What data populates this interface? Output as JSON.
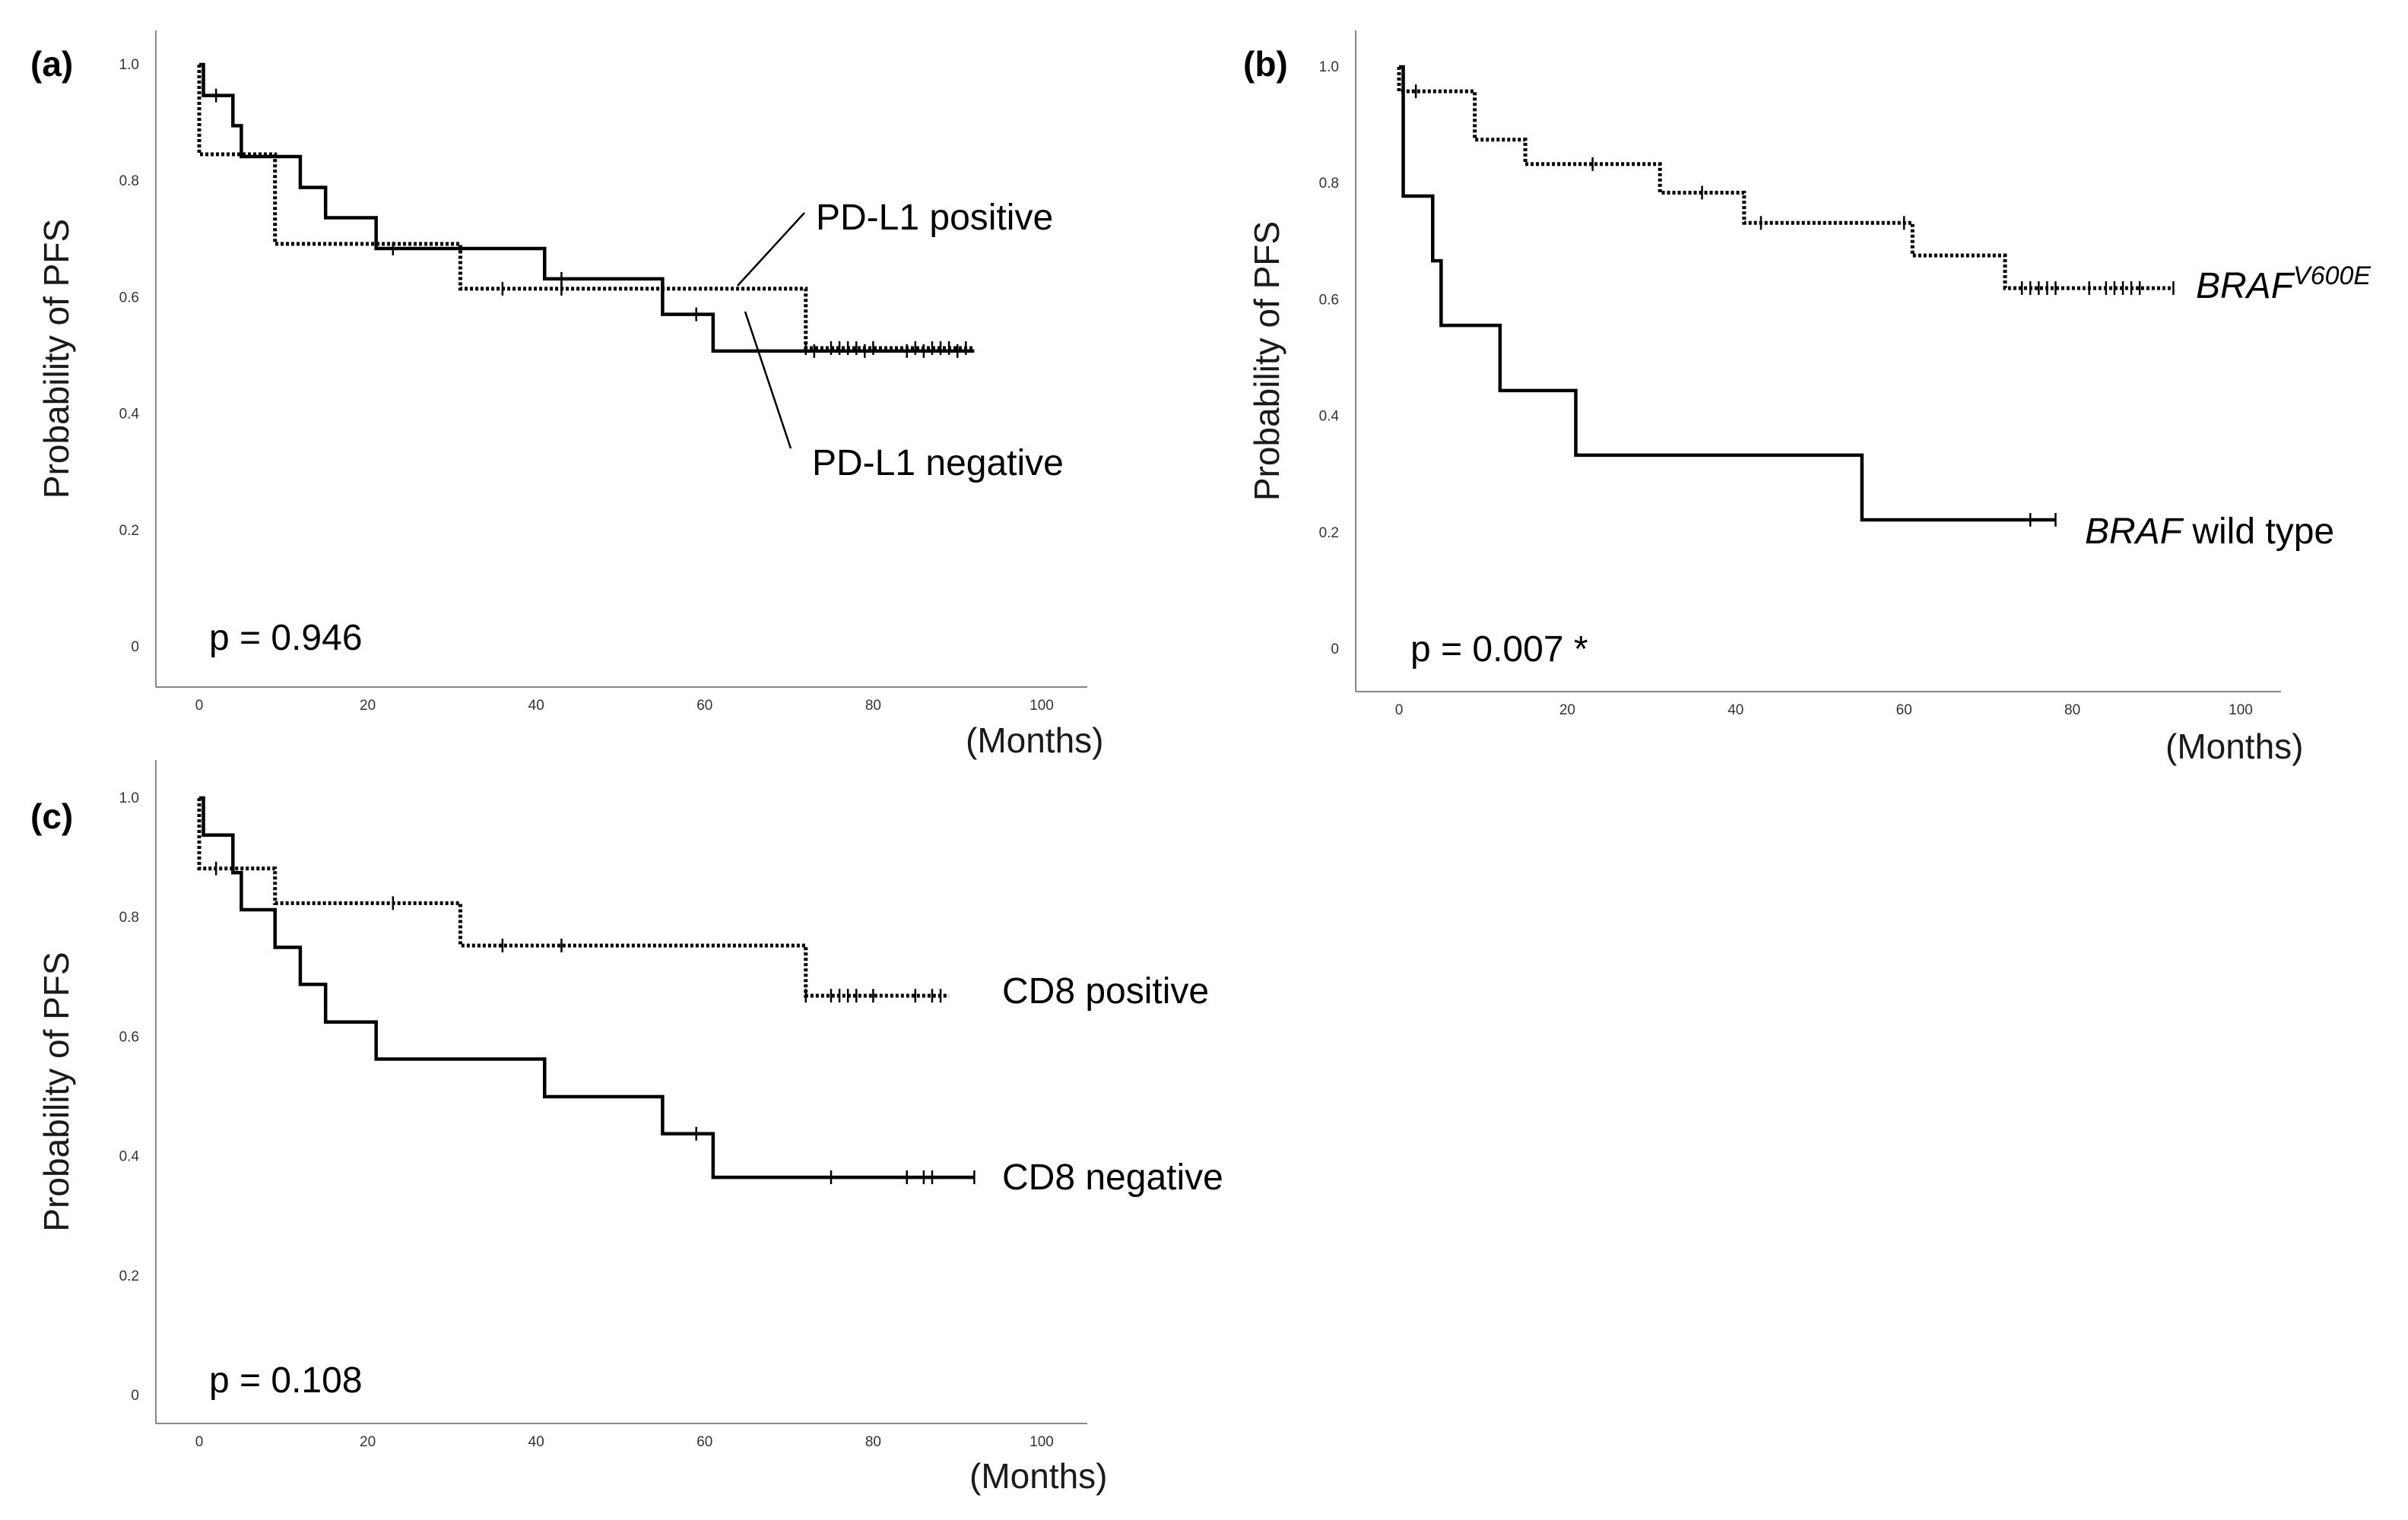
{
  "chart_data": [
    {
      "panel": "(a)",
      "type": "line",
      "step": true,
      "ylabel": "Probability of PFS",
      "xlabel": "(Months)",
      "xlim": [
        0,
        100
      ],
      "ylim": [
        0,
        1.0
      ],
      "xticks": [
        "0",
        "20",
        "40",
        "60",
        "80",
        "100"
      ],
      "yticks": [
        "0",
        "0.2",
        "0.4",
        "0.6",
        "0.8",
        "1.0"
      ],
      "pvalue": "p = 0.946",
      "grid": false,
      "series": [
        {
          "name": "PD-L1 positive",
          "style": "dotted",
          "steps": [
            [
              0,
              1.0
            ],
            [
              0,
              0.846
            ],
            [
              9,
              0.692
            ],
            [
              31,
              0.615
            ],
            [
              72,
              0.513
            ],
            [
              92,
              0.513
            ]
          ],
          "censors": [
            [
              36,
              0.615
            ],
            [
              43,
              0.615
            ],
            [
              72,
              0.513
            ],
            [
              75,
              0.513
            ],
            [
              76,
              0.513
            ],
            [
              77,
              0.513
            ],
            [
              78,
              0.513
            ],
            [
              80,
              0.513
            ],
            [
              85,
              0.513
            ],
            [
              87,
              0.513
            ],
            [
              88,
              0.513
            ],
            [
              89,
              0.513
            ],
            [
              91,
              0.513
            ]
          ]
        },
        {
          "name": "PD-L1 negative",
          "style": "solid",
          "steps": [
            [
              0,
              1.0
            ],
            [
              0.5,
              0.947
            ],
            [
              4,
              0.895
            ],
            [
              5,
              0.842
            ],
            [
              12,
              0.789
            ],
            [
              15,
              0.737
            ],
            [
              21,
              0.684
            ],
            [
              41,
              0.632
            ],
            [
              55,
              0.571
            ],
            [
              61,
              0.508
            ],
            [
              92,
              0.508
            ]
          ],
          "censors": [
            [
              2,
              0.947
            ],
            [
              23,
              0.684
            ],
            [
              43,
              0.632
            ],
            [
              59,
              0.571
            ],
            [
              73,
              0.508
            ],
            [
              79,
              0.508
            ],
            [
              84,
              0.508
            ],
            [
              86,
              0.508
            ],
            [
              90,
              0.508
            ]
          ]
        }
      ]
    },
    {
      "panel": "(b)",
      "type": "line",
      "step": true,
      "ylabel": "Probability of PFS",
      "xlabel": "(Months)",
      "xlim": [
        0,
        100
      ],
      "ylim": [
        0,
        1.0
      ],
      "xticks": [
        "0",
        "20",
        "40",
        "60",
        "80",
        "100"
      ],
      "yticks": [
        "0",
        "0.2",
        "0.4",
        "0.6",
        "0.8",
        "1.0"
      ],
      "pvalue": "p = 0.007 *",
      "grid": false,
      "series": [
        {
          "name": "BRAF",
          "name_superscript": "V600E",
          "style": "dotted",
          "steps": [
            [
              0,
              1.0
            ],
            [
              0,
              0.958
            ],
            [
              9,
              0.875
            ],
            [
              15,
              0.833
            ],
            [
              31,
              0.784
            ],
            [
              41,
              0.732
            ],
            [
              61,
              0.676
            ],
            [
              72,
              0.62
            ],
            [
              92,
              0.62
            ]
          ],
          "censors": [
            [
              2,
              0.958
            ],
            [
              23,
              0.833
            ],
            [
              36,
              0.784
            ],
            [
              43,
              0.732
            ],
            [
              60,
              0.732
            ],
            [
              74,
              0.62
            ],
            [
              75,
              0.62
            ],
            [
              76,
              0.62
            ],
            [
              77,
              0.62
            ],
            [
              78,
              0.62
            ],
            [
              82,
              0.62
            ],
            [
              84,
              0.62
            ],
            [
              85,
              0.62
            ],
            [
              86,
              0.62
            ],
            [
              87,
              0.62
            ],
            [
              88,
              0.62
            ],
            [
              92,
              0.62
            ]
          ]
        },
        {
          "name": "BRAF wild type",
          "name_italic": "BRAF",
          "name_rest": " wild type",
          "style": "solid",
          "steps": [
            [
              0,
              1.0
            ],
            [
              0.5,
              0.778
            ],
            [
              4,
              0.667
            ],
            [
              5,
              0.556
            ],
            [
              12,
              0.444
            ],
            [
              21,
              0.333
            ],
            [
              55,
              0.222
            ],
            [
              78,
              0.222
            ]
          ],
          "censors": [
            [
              75,
              0.222
            ],
            [
              78,
              0.222
            ]
          ]
        }
      ]
    },
    {
      "panel": "(c)",
      "type": "line",
      "step": true,
      "ylabel": "Probability of PFS",
      "xlabel": "(Months)",
      "xlim": [
        0,
        100
      ],
      "ylim": [
        0,
        1.0
      ],
      "xticks": [
        "0",
        "20",
        "40",
        "60",
        "80",
        "100"
      ],
      "yticks": [
        "0",
        "0.2",
        "0.4",
        "0.6",
        "0.8",
        "1.0"
      ],
      "pvalue": "p = 0.108",
      "grid": false,
      "series": [
        {
          "name": "CD8 positive",
          "style": "dotted",
          "steps": [
            [
              0,
              1.0
            ],
            [
              0,
              0.882
            ],
            [
              9,
              0.824
            ],
            [
              31,
              0.753
            ],
            [
              72,
              0.669
            ],
            [
              89,
              0.669
            ]
          ],
          "censors": [
            [
              2,
              0.882
            ],
            [
              23,
              0.824
            ],
            [
              36,
              0.753
            ],
            [
              43,
              0.753
            ],
            [
              72,
              0.669
            ],
            [
              75,
              0.669
            ],
            [
              76,
              0.669
            ],
            [
              77,
              0.669
            ],
            [
              78,
              0.669
            ],
            [
              80,
              0.669
            ],
            [
              85,
              0.669
            ],
            [
              87,
              0.669
            ],
            [
              88,
              0.669
            ]
          ]
        },
        {
          "name": "CD8 negative",
          "style": "solid",
          "steps": [
            [
              0,
              1.0
            ],
            [
              0.5,
              0.938
            ],
            [
              4,
              0.875
            ],
            [
              5,
              0.813
            ],
            [
              9,
              0.75
            ],
            [
              12,
              0.688
            ],
            [
              15,
              0.625
            ],
            [
              21,
              0.563
            ],
            [
              41,
              0.5
            ],
            [
              55,
              0.438
            ],
            [
              61,
              0.365
            ],
            [
              92,
              0.365
            ]
          ],
          "censors": [
            [
              59,
              0.438
            ],
            [
              75,
              0.365
            ],
            [
              84,
              0.365
            ],
            [
              86,
              0.365
            ],
            [
              87,
              0.365
            ],
            [
              92,
              0.365
            ]
          ]
        }
      ]
    }
  ]
}
